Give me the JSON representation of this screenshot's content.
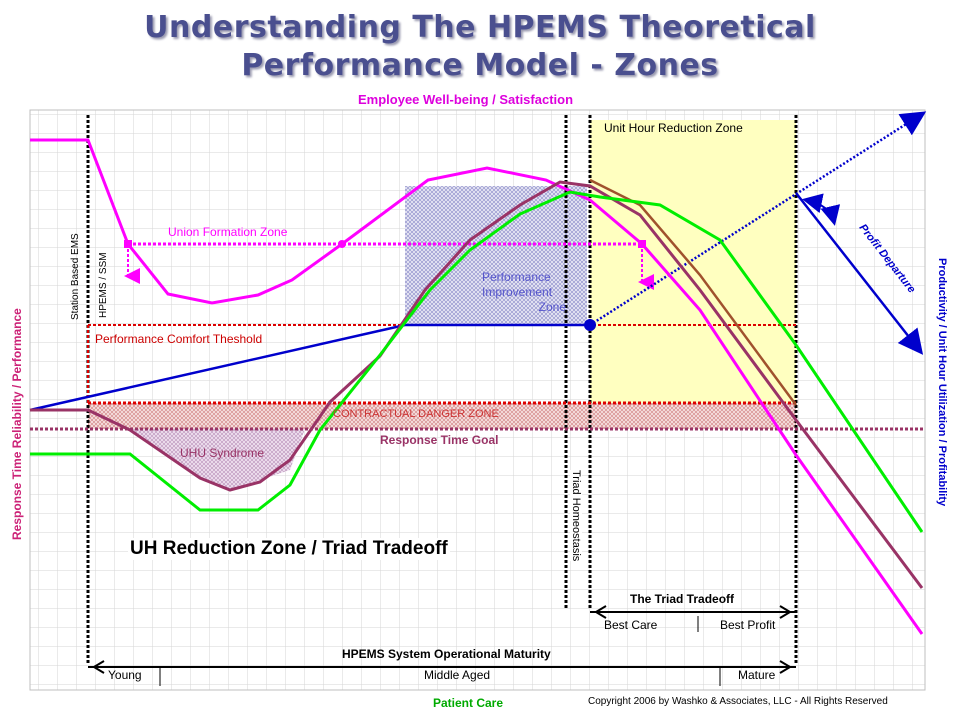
{
  "title": {
    "line1": "Understanding The HPEMS Theoretical",
    "line2": "Performance Model - Zones"
  },
  "axes": {
    "top": "Employee Well-being / Satisfaction",
    "left": "Response Time Reliability / Performance",
    "right": "Productivity / Unit Hour Utilization / Profitability",
    "bottom": "Patient Care"
  },
  "zones": {
    "unit_hour_reduction": "Unit Hour Reduction Zone",
    "union_formation": "Union Formation Zone",
    "performance_improvement": [
      "Performance",
      "Improvement",
      "Zone"
    ],
    "performance_comfort": "Performance Comfort Theshold",
    "contractual_danger": "CONTRACTUAL DANGER ZONE",
    "response_time_goal": "Response Time Goal",
    "uhu_syndrome": "UHU Syndrome",
    "profit_departure": "Profit Departure"
  },
  "verticals": {
    "station_based": "Station Based EMS",
    "hpems_ssm": "HPEMS / SSM",
    "triad_homeostasis": "Triad Homeostasis"
  },
  "tradeoff": {
    "heading": "UH Reduction Zone / Triad Tradeoff",
    "triad_label": "The Triad Tradeoff",
    "best_care": "Best Care",
    "best_profit": "Best Profit"
  },
  "maturity": {
    "label": "HPEMS System Operational Maturity",
    "young": "Young",
    "middle": "Middle Aged",
    "mature": "Mature"
  },
  "copyright": "Copyright 2006 by Washko & Associates, LLC - All Rights Reserved",
  "colors": {
    "title": "#4a4f8f",
    "magenta": "#ff00ff",
    "green": "#00ff00",
    "maroon": "#993366",
    "brown": "#a0522d",
    "blue": "#0000cc",
    "red_dotted": "#cc0000",
    "comfort_label": "#cc0000",
    "yellow_zone": "#ffffc0"
  }
}
